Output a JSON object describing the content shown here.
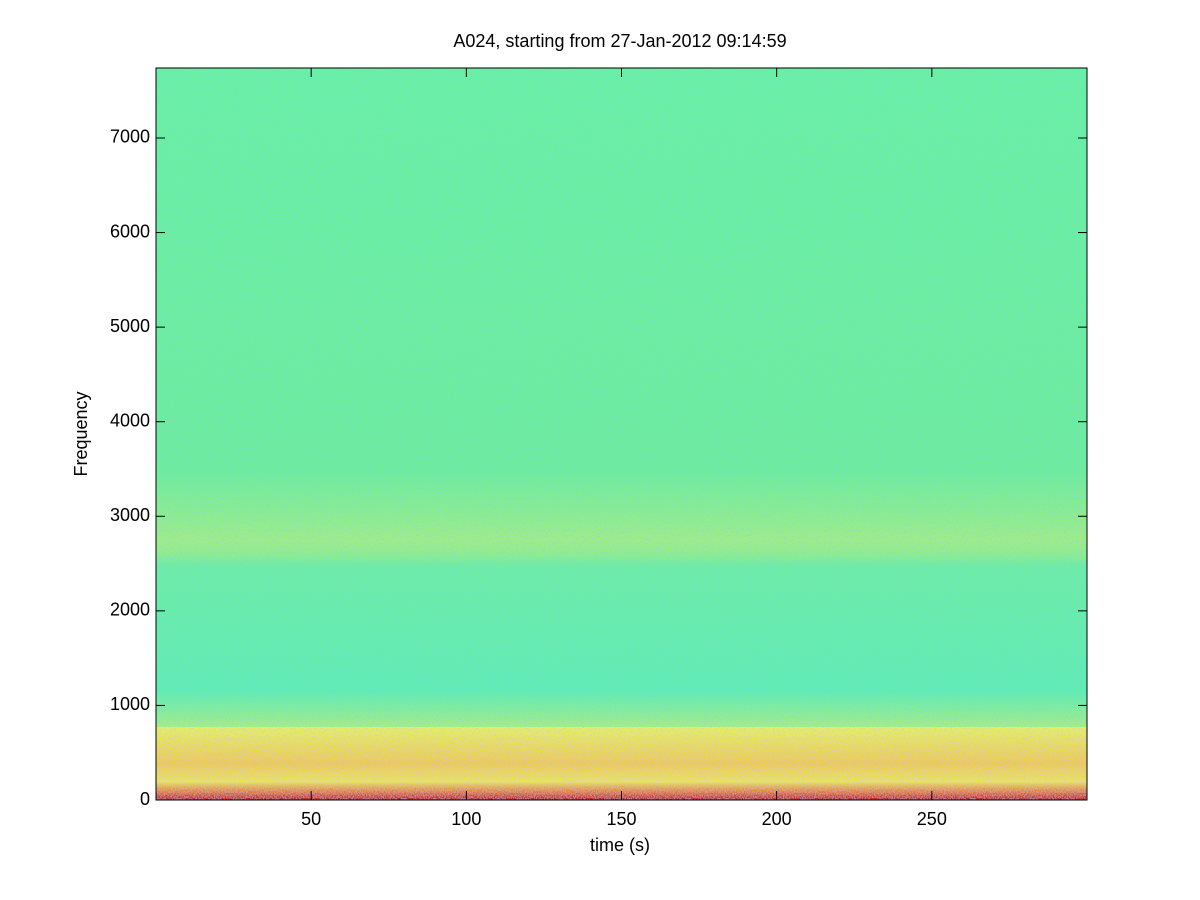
{
  "chart_data": {
    "type": "spectrogram",
    "title": "A024, starting from 27-Jan-2012 09:14:59",
    "x_label": "time (s)",
    "y_label": "Frequency",
    "xlim": [
      0,
      300
    ],
    "xticks": [
      50,
      100,
      150,
      200,
      250
    ],
    "ylim": [
      0,
      7740
    ],
    "yticks": [
      0,
      1000,
      2000,
      3000,
      4000,
      5000,
      6000,
      7000
    ]
  }
}
